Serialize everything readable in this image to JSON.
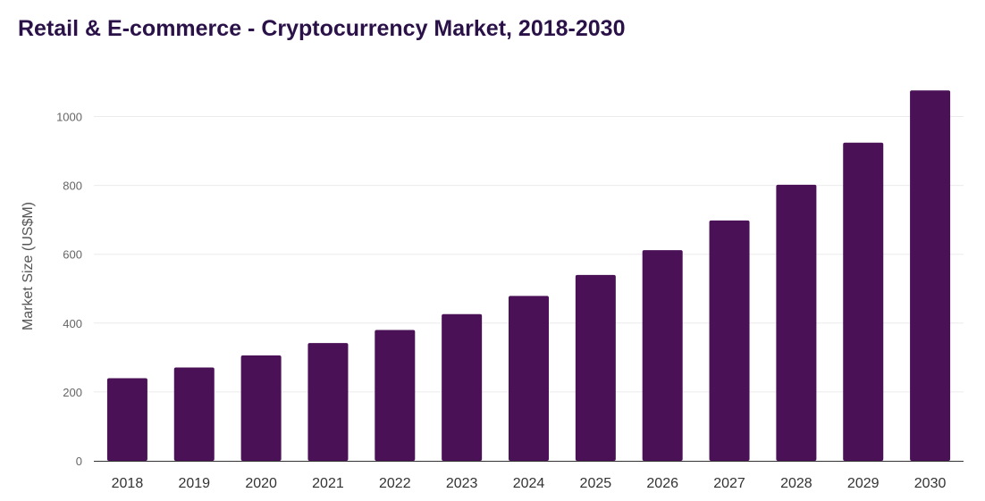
{
  "chart_data": {
    "type": "bar",
    "title": "Retail & E-commerce - Cryptocurrency Market, 2018-2030",
    "xlabel": "",
    "ylabel": "Market Size (US$M)",
    "categories": [
      "2018",
      "2019",
      "2020",
      "2021",
      "2022",
      "2023",
      "2024",
      "2025",
      "2026",
      "2027",
      "2028",
      "2029",
      "2030"
    ],
    "values": [
      240,
      271,
      306,
      342,
      380,
      426,
      479,
      540,
      612,
      698,
      802,
      924,
      1076
    ],
    "yticks": [
      0,
      200,
      400,
      600,
      800,
      1000
    ],
    "ylim": [
      0,
      1100
    ],
    "grid": true,
    "bar_color": "#4a1156"
  }
}
